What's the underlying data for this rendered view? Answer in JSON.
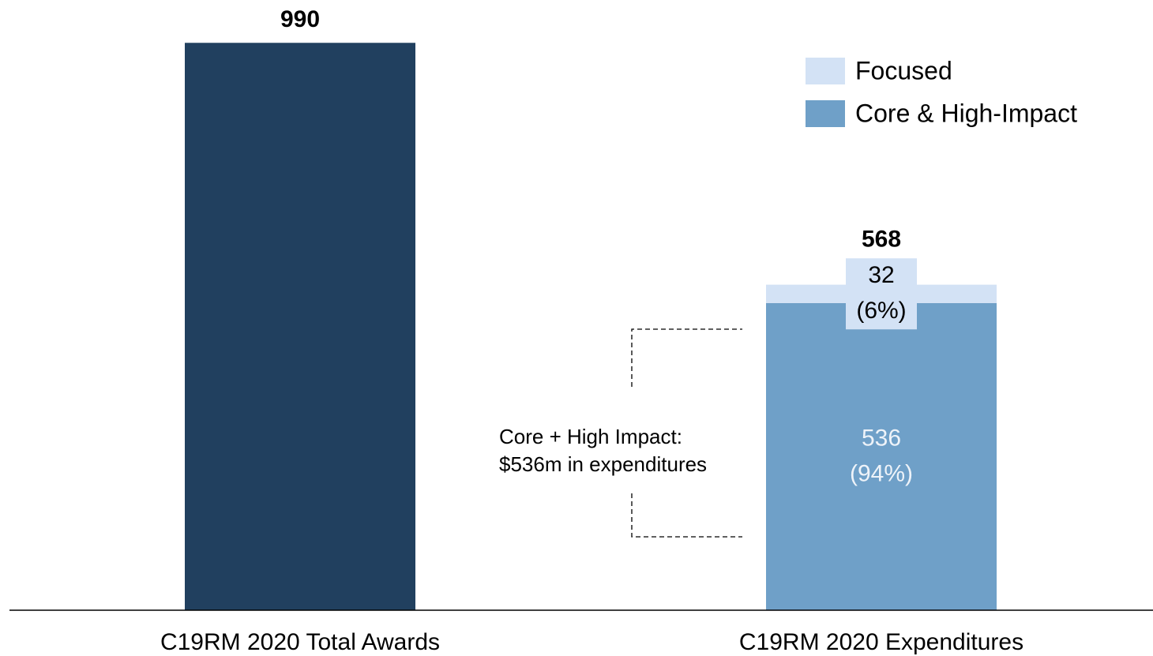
{
  "chart_data": {
    "type": "stacked_bar",
    "categories": [
      "C19RM 2020 Total Awards",
      "C19RM 2020 Expenditures"
    ],
    "series": [
      {
        "color": "#21405f",
        "values": [
          990,
          null
        ]
      },
      {
        "name": "Core & High-Impact",
        "color": "#6fa0c8",
        "values": [
          null,
          536
        ],
        "share_labels": [
          null,
          "(94%)"
        ],
        "label_color": "#eef3f9"
      },
      {
        "name": "Focused",
        "color": "#d3e2f5",
        "values": [
          null,
          32
        ],
        "share_labels": [
          null,
          "(6%)"
        ],
        "label_color": "#000000"
      }
    ],
    "totals": [
      990,
      568
    ],
    "annotation": [
      "Core + High Impact:",
      "$536m in expenditures"
    ],
    "ylim": [
      0,
      1000
    ]
  }
}
